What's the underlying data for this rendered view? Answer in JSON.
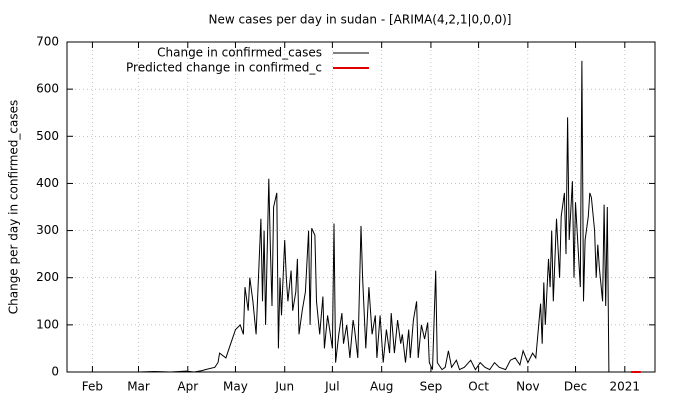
{
  "chart_data": {
    "type": "line",
    "title": "New cases per day in sudan -  [ARIMA(4,2,1|0,0,0)]",
    "y_label": "Change per day in confirmed_cases",
    "xlim": [
      15,
      385
    ],
    "xticks": [
      {
        "value": 31,
        "label": "Feb"
      },
      {
        "value": 60,
        "label": "Mar"
      },
      {
        "value": 91,
        "label": "Apr"
      },
      {
        "value": 121,
        "label": "May"
      },
      {
        "value": 152,
        "label": "Jun"
      },
      {
        "value": 182,
        "label": "Jul"
      },
      {
        "value": 213,
        "label": "Aug"
      },
      {
        "value": 244,
        "label": "Sep"
      },
      {
        "value": 274,
        "label": "Oct"
      },
      {
        "value": 305,
        "label": "Nov"
      },
      {
        "value": 335,
        "label": "Dec"
      },
      {
        "value": 366,
        "label": "2021"
      }
    ],
    "ylim": [
      0,
      700
    ],
    "yticks": [
      0,
      100,
      200,
      300,
      400,
      500,
      600,
      700
    ],
    "grid": true,
    "legend": "top-left",
    "series": [
      {
        "name": "Change in confirmed_cases",
        "color": "#000000",
        "x": [
          60,
          70,
          80,
          90,
          95,
          100,
          102,
          108,
          110,
          111,
          115,
          118,
          121,
          124,
          126,
          127,
          129,
          130,
          132,
          134,
          137,
          138,
          139,
          140,
          142,
          143,
          144,
          145,
          147,
          148,
          149,
          150,
          152,
          153,
          154,
          156,
          157,
          159,
          160,
          161,
          163,
          165,
          167,
          168,
          169,
          171,
          172,
          174,
          176,
          177,
          179,
          182,
          183,
          184,
          186,
          188,
          189,
          191,
          193,
          195,
          196,
          198,
          200,
          201,
          203,
          205,
          207,
          209,
          210,
          212,
          214,
          216,
          218,
          219,
          221,
          223,
          225,
          226,
          228,
          230,
          231,
          233,
          235,
          236,
          238,
          240,
          242,
          243,
          245,
          247,
          248,
          251,
          253,
          255,
          257,
          260,
          262,
          265,
          269,
          272,
          275,
          278,
          281,
          284,
          287,
          291,
          294,
          297,
          300,
          302,
          305,
          308,
          310,
          313,
          314,
          315,
          316,
          318,
          319,
          320,
          321,
          323,
          324,
          325,
          326,
          328,
          329,
          330,
          331,
          333,
          334,
          335,
          336,
          338,
          339,
          340,
          341,
          343,
          344,
          345,
          347,
          348,
          349,
          350,
          352,
          353,
          354,
          355,
          356
        ],
        "values": [
          0,
          1,
          0,
          2,
          0,
          3,
          5,
          10,
          20,
          40,
          30,
          60,
          90,
          100,
          80,
          180,
          130,
          200,
          150,
          80,
          325,
          150,
          300,
          100,
          410,
          260,
          140,
          350,
          380,
          50,
          200,
          120,
          280,
          200,
          150,
          215,
          130,
          170,
          240,
          80,
          130,
          170,
          300,
          100,
          305,
          290,
          150,
          80,
          160,
          50,
          120,
          50,
          315,
          20,
          80,
          125,
          60,
          100,
          30,
          110,
          90,
          30,
          310,
          200,
          50,
          180,
          80,
          120,
          30,
          120,
          20,
          90,
          40,
          125,
          40,
          110,
          60,
          80,
          20,
          90,
          30,
          110,
          150,
          30,
          100,
          70,
          105,
          20,
          5,
          215,
          20,
          5,
          10,
          45,
          10,
          25,
          5,
          10,
          25,
          5,
          20,
          10,
          5,
          20,
          10,
          5,
          25,
          30,
          15,
          45,
          20,
          40,
          30,
          145,
          60,
          190,
          100,
          240,
          180,
          300,
          150,
          325,
          260,
          200,
          330,
          380,
          250,
          540,
          280,
          405,
          200,
          360,
          300,
          180,
          660,
          150,
          280,
          330,
          380,
          370,
          300,
          200,
          270,
          220,
          150,
          355,
          140,
          350,
          0
        ]
      },
      {
        "name": "Predicted change in confirmed_c",
        "color": "#e00000",
        "x": [
          370,
          376
        ],
        "values": [
          0,
          0
        ]
      }
    ]
  }
}
